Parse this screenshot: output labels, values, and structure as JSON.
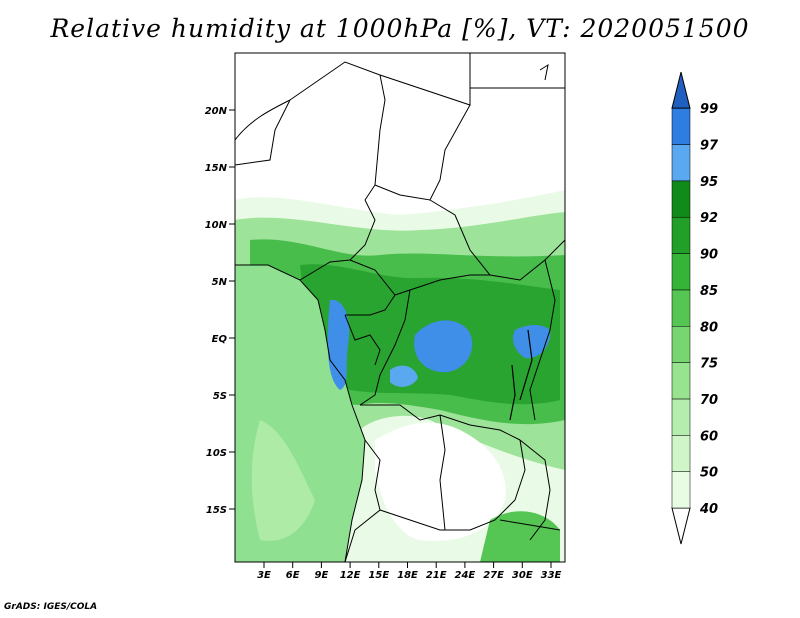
{
  "title": "Relative humidity at 1000hPa [%], VT: 2020051500",
  "credit": "GrADS: IGES/COLA",
  "lat_ticks": [
    "20N",
    "15N",
    "10N",
    "5N",
    "EQ",
    "5S",
    "10S",
    "15S"
  ],
  "lon_ticks": [
    "3E",
    "6E",
    "9E",
    "12E",
    "15E",
    "18E",
    "21E",
    "24E",
    "27E",
    "30E",
    "33E"
  ],
  "colorbar": {
    "levels": [
      "40",
      "50",
      "60",
      "70",
      "75",
      "80",
      "85",
      "90",
      "92",
      "95",
      "97",
      "99"
    ],
    "colors": [
      "#ffffff",
      "#e8fbe3",
      "#cff5c8",
      "#b4edad",
      "#97e38f",
      "#78d672",
      "#55c653",
      "#35b437",
      "#229f29",
      "#118a1c",
      "#5aa8f0",
      "#2d7ee0",
      "#1f5fbf"
    ]
  },
  "colors": {
    "ocean": "#90e092",
    "land_light": "#e9fbe6",
    "land_mid": "#8fdc8a",
    "land_dark": "#2fae35",
    "very_humid": "#3f8ee8",
    "border": "#000000"
  }
}
